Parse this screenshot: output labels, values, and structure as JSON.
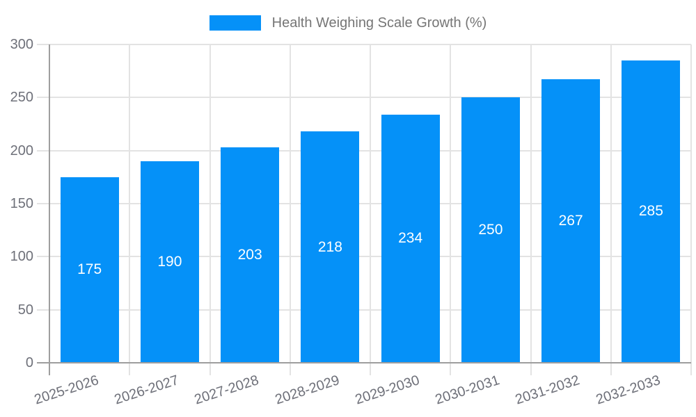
{
  "legend": {
    "label": "Health Weighing Scale Growth (%)",
    "swatch_color": "#0591f8"
  },
  "chart_data": {
    "type": "bar",
    "title": "Health Weighing Scale Growth (%)",
    "series_name": "Health Weighing Scale Growth (%)",
    "categories": [
      "2025-2026",
      "2026-2027",
      "2027-2028",
      "2028-2029",
      "2029-2030",
      "2030-2031",
      "2031-2032",
      "2032-2033"
    ],
    "values": [
      175,
      190,
      203,
      218,
      234,
      250,
      267,
      285
    ],
    "value_labels_shown": true,
    "xlabel": "",
    "ylabel": "",
    "ylim": [
      0,
      300
    ],
    "yticks": [
      0,
      50,
      100,
      150,
      200,
      250,
      300
    ],
    "grid": true,
    "legend_position": "top-center",
    "colors": {
      "bar": "#0591f8",
      "value_label": "#ffffff",
      "grid_line": "#e3e3e3",
      "axis_line": "#9e9e9e",
      "tick_label": "#6e7079",
      "legend_text": "#757575",
      "background": "#ffffff"
    }
  }
}
